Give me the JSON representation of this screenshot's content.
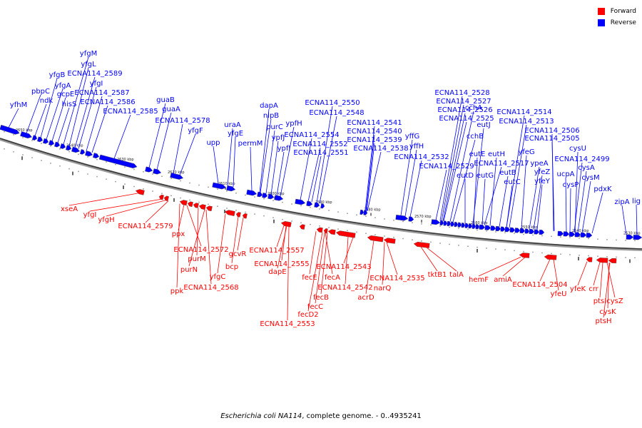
{
  "legend": [
    {
      "label": "Forward",
      "color": "#ff0000"
    },
    {
      "label": "Reverse",
      "color": "#0000ff"
    }
  ],
  "caption": {
    "organism": "Escherichia coli NA114",
    "rest": ", complete genome. - 0..4935241"
  },
  "scale_labels": [
    "2650 kbp",
    "2640 kbp",
    "2630 kbp",
    "2620 kbp",
    "2610 kbp",
    "2600 kbp",
    "2590 kbp",
    "2580 kbp",
    "2570 kbp",
    "2560 kbp",
    "2550 kbp",
    "2540 kbp",
    "2530 kbp"
  ],
  "reverse_genes": [
    "yfhM",
    "pbpC",
    "ndk",
    "yfgB",
    "yfgA",
    "gcpE",
    "hisS",
    "yfgM",
    "yfgL",
    "ECNA114_2589",
    "yfgI",
    "ECNA114_2587",
    "ECNA114_2586",
    "ECNA114_2585",
    "guaB",
    "guaA",
    "ECNA114_2578",
    "yfgF",
    "upp",
    "uraA",
    "yfgE",
    "permM",
    "dapA",
    "nlpB",
    "purC",
    "ypfJ",
    "ypfI",
    "ypfH",
    "ECNA114_2554",
    "ECNA114_2552",
    "ECNA114_2551",
    "ECNA114_2550",
    "ECNA114_2548",
    "ECNA114_2541",
    "ECNA114_2540",
    "ECNA114_2539",
    "ECNA114_2538",
    "yffG",
    "yffH",
    "ECNA114_2532",
    "ECNA114_2529",
    "ECNA114_2528",
    "ECNA114_2527",
    "ECNA114_2526",
    "ECNA114_2525",
    "cchA",
    "cchB",
    "eutJ",
    "eutE",
    "eutD",
    "eutH",
    "eutG",
    "ECNA114_2517",
    "eutB",
    "eutC",
    "ECNA114_2514",
    "ECNA114_2513",
    "yfeG",
    "ypeA",
    "yfeZ",
    "yfeY",
    "ECNA114_2506",
    "ECNA114_2505",
    "cysU",
    "ECNA114_2499",
    "ucpA",
    "cysA",
    "cysP",
    "cysM",
    "pdxK",
    "zipA",
    "lig"
  ],
  "forward_genes": [
    "xseA",
    "yfgI",
    "yfgH",
    "ECNA114_2579",
    "ppx",
    "ECNA114_2572",
    "purM",
    "purN",
    "ppk",
    "yfgC",
    "ECNA114_2568",
    "gcvR",
    "bcp",
    "ECNA114_2557",
    "ECNA114_2555",
    "dapE",
    "fecE",
    "fecA",
    "fecB",
    "fecC",
    "fecD2",
    "ECNA114_2553",
    "ECNA114_2543",
    "ECNA114_2542",
    "narQ",
    "acrD",
    "ECNA114_2535",
    "tktB1",
    "talA",
    "hemF",
    "amiA",
    "ECNA114_2504",
    "yfeU",
    "yfeK",
    "crr",
    "ptsI",
    "cysZ",
    "cysK",
    "ptsH"
  ]
}
